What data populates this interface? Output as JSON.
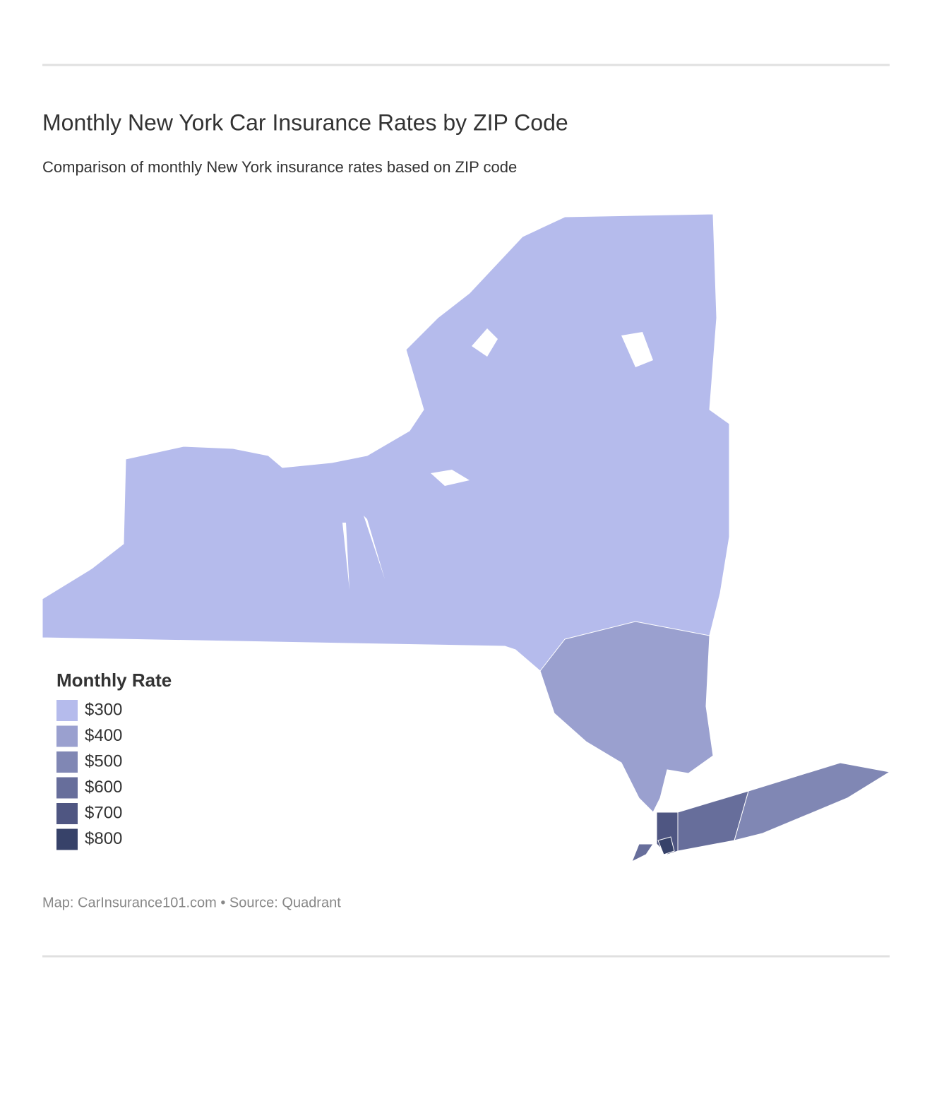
{
  "title": "Monthly New York Car Insurance Rates by ZIP Code",
  "subtitle": "Comparison of monthly New York insurance rates based on ZIP code",
  "legend": {
    "title": "Monthly Rate",
    "items": [
      {
        "value": 300,
        "label": "$300",
        "color": "#b5bbec"
      },
      {
        "value": 400,
        "label": "$400",
        "color": "#9aa0cf"
      },
      {
        "value": 500,
        "label": "$500",
        "color": "#8087b4"
      },
      {
        "value": 600,
        "label": "$600",
        "color": "#676e9b"
      },
      {
        "value": 700,
        "label": "$700",
        "color": "#4f5682"
      },
      {
        "value": 800,
        "label": "$800",
        "color": "#374269"
      }
    ]
  },
  "footer": "Map: CarInsurance101.com • Source: Quadrant"
}
